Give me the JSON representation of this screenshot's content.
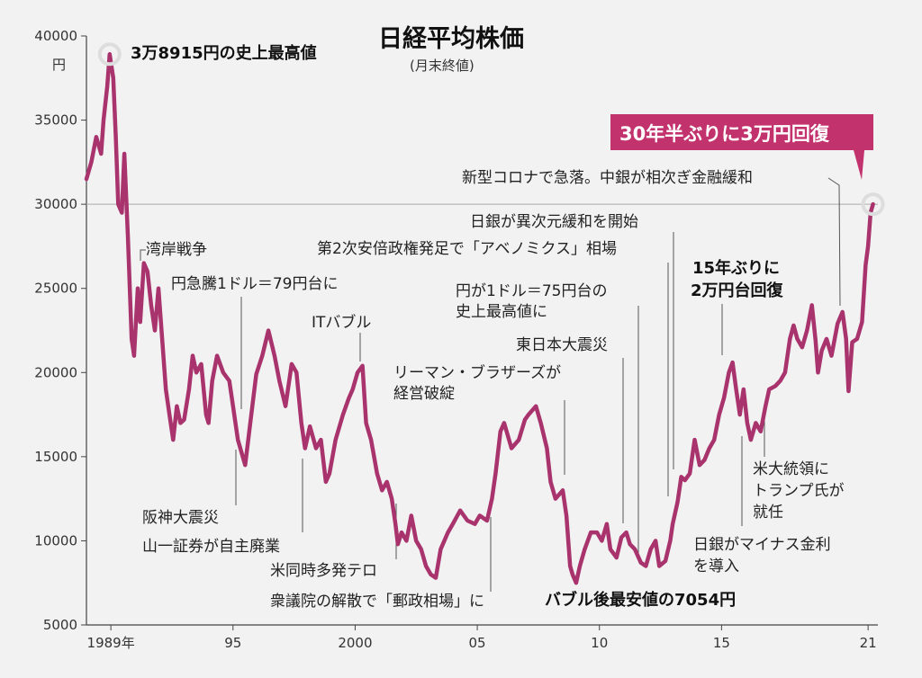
{
  "chart_data": {
    "type": "line",
    "title": "日経平均株価",
    "subtitle": "(月末終値)",
    "yunit": "円",
    "ylim": [
      5000,
      40000
    ],
    "yticks": [
      "40000",
      "35000",
      "30000",
      "25000",
      "20000",
      "15000",
      "10000",
      "5000"
    ],
    "xlim": [
      1989.0,
      2021.4
    ],
    "xticks": [
      {
        "x": 1990.0,
        "label": "1989年"
      },
      {
        "x": 1995.0,
        "label": "95"
      },
      {
        "x": 2000.0,
        "label": "2000"
      },
      {
        "x": 2005.0,
        "label": "05"
      },
      {
        "x": 2010.0,
        "label": "10"
      },
      {
        "x": 2015.0,
        "label": "15"
      },
      {
        "x": 2021.0,
        "label": "21"
      }
    ],
    "reference_line": 30000,
    "line_color": "#a8336d",
    "highlight_color": "#c2336e",
    "series": [
      {
        "points": [
          [
            1989.0,
            31500
          ],
          [
            1989.2,
            32500
          ],
          [
            1989.4,
            34000
          ],
          [
            1989.6,
            33000
          ],
          [
            1989.7,
            35000
          ],
          [
            1989.85,
            37000
          ],
          [
            1989.95,
            38915
          ],
          [
            1990.1,
            37500
          ],
          [
            1990.2,
            34000
          ],
          [
            1990.3,
            30000
          ],
          [
            1990.45,
            29500
          ],
          [
            1990.55,
            33000
          ],
          [
            1990.7,
            28000
          ],
          [
            1990.85,
            22000
          ],
          [
            1990.95,
            21000
          ],
          [
            1991.1,
            25000
          ],
          [
            1991.2,
            23000
          ],
          [
            1991.35,
            26500
          ],
          [
            1991.5,
            26000
          ],
          [
            1991.65,
            24000
          ],
          [
            1991.8,
            22500
          ],
          [
            1991.95,
            25000
          ],
          [
            1992.1,
            22000
          ],
          [
            1992.25,
            19000
          ],
          [
            1992.4,
            17500
          ],
          [
            1992.55,
            16000
          ],
          [
            1992.7,
            18000
          ],
          [
            1992.85,
            17000
          ],
          [
            1993.0,
            17200
          ],
          [
            1993.2,
            19000
          ],
          [
            1993.35,
            21000
          ],
          [
            1993.5,
            20000
          ],
          [
            1993.7,
            20500
          ],
          [
            1993.9,
            17500
          ],
          [
            1994.0,
            17000
          ],
          [
            1994.15,
            19500
          ],
          [
            1994.35,
            21000
          ],
          [
            1994.6,
            20000
          ],
          [
            1994.85,
            19500
          ],
          [
            1995.0,
            18000
          ],
          [
            1995.2,
            16000
          ],
          [
            1995.4,
            15000
          ],
          [
            1995.5,
            14500
          ],
          [
            1995.75,
            17500
          ],
          [
            1995.95,
            19900
          ],
          [
            1996.2,
            21000
          ],
          [
            1996.45,
            22500
          ],
          [
            1996.7,
            21000
          ],
          [
            1996.9,
            19500
          ],
          [
            1997.15,
            18000
          ],
          [
            1997.4,
            20500
          ],
          [
            1997.6,
            20000
          ],
          [
            1997.8,
            17000
          ],
          [
            1997.95,
            15500
          ],
          [
            1998.15,
            16800
          ],
          [
            1998.4,
            15500
          ],
          [
            1998.6,
            16000
          ],
          [
            1998.8,
            13500
          ],
          [
            1998.95,
            14000
          ],
          [
            1999.2,
            16000
          ],
          [
            1999.5,
            17500
          ],
          [
            1999.75,
            18500
          ],
          [
            1999.9,
            19000
          ],
          [
            2000.1,
            20000
          ],
          [
            2000.3,
            20400
          ],
          [
            2000.45,
            17000
          ],
          [
            2000.65,
            16000
          ],
          [
            2000.9,
            14000
          ],
          [
            2001.1,
            13000
          ],
          [
            2001.3,
            13500
          ],
          [
            2001.5,
            12500
          ],
          [
            2001.65,
            11000
          ],
          [
            2001.75,
            9800
          ],
          [
            2001.9,
            10500
          ],
          [
            2002.1,
            10000
          ],
          [
            2002.3,
            11500
          ],
          [
            2002.5,
            10000
          ],
          [
            2002.7,
            9500
          ],
          [
            2002.9,
            8500
          ],
          [
            2003.1,
            8000
          ],
          [
            2003.3,
            7800
          ],
          [
            2003.5,
            9500
          ],
          [
            2003.8,
            10500
          ],
          [
            2004.0,
            11000
          ],
          [
            2004.3,
            11800
          ],
          [
            2004.6,
            11200
          ],
          [
            2004.9,
            11000
          ],
          [
            2005.1,
            11500
          ],
          [
            2005.4,
            11200
          ],
          [
            2005.6,
            12500
          ],
          [
            2005.75,
            14000
          ],
          [
            2005.95,
            16500
          ],
          [
            2006.1,
            17000
          ],
          [
            2006.4,
            15500
          ],
          [
            2006.7,
            16000
          ],
          [
            2006.95,
            17200
          ],
          [
            2007.1,
            17500
          ],
          [
            2007.4,
            18000
          ],
          [
            2007.6,
            17000
          ],
          [
            2007.85,
            15500
          ],
          [
            2008.0,
            13500
          ],
          [
            2008.2,
            12500
          ],
          [
            2008.5,
            13000
          ],
          [
            2008.65,
            11500
          ],
          [
            2008.8,
            8500
          ],
          [
            2008.9,
            8000
          ],
          [
            2009.05,
            7500
          ],
          [
            2009.2,
            8500
          ],
          [
            2009.4,
            9500
          ],
          [
            2009.65,
            10500
          ],
          [
            2009.9,
            10500
          ],
          [
            2010.1,
            10000
          ],
          [
            2010.3,
            11000
          ],
          [
            2010.45,
            9500
          ],
          [
            2010.7,
            9000
          ],
          [
            2010.9,
            10200
          ],
          [
            2011.1,
            10500
          ],
          [
            2011.25,
            9800
          ],
          [
            2011.45,
            9500
          ],
          [
            2011.7,
            8700
          ],
          [
            2011.9,
            8500
          ],
          [
            2012.1,
            9500
          ],
          [
            2012.3,
            10000
          ],
          [
            2012.45,
            8500
          ],
          [
            2012.7,
            8800
          ],
          [
            2012.9,
            10000
          ],
          [
            2013.0,
            11000
          ],
          [
            2013.2,
            12300
          ],
          [
            2013.35,
            13800
          ],
          [
            2013.5,
            13600
          ],
          [
            2013.7,
            14000
          ],
          [
            2013.9,
            16000
          ],
          [
            2014.1,
            14500
          ],
          [
            2014.3,
            14800
          ],
          [
            2014.5,
            15500
          ],
          [
            2014.7,
            16000
          ],
          [
            2014.9,
            17500
          ],
          [
            2015.1,
            18500
          ],
          [
            2015.3,
            20000
          ],
          [
            2015.45,
            20600
          ],
          [
            2015.6,
            19000
          ],
          [
            2015.75,
            17500
          ],
          [
            2015.9,
            19000
          ],
          [
            2016.05,
            17000
          ],
          [
            2016.2,
            16000
          ],
          [
            2016.4,
            17000
          ],
          [
            2016.6,
            16500
          ],
          [
            2016.8,
            18000
          ],
          [
            2016.95,
            19000
          ],
          [
            2017.2,
            19200
          ],
          [
            2017.4,
            19500
          ],
          [
            2017.6,
            20000
          ],
          [
            2017.8,
            22000
          ],
          [
            2017.95,
            22800
          ],
          [
            2018.1,
            22000
          ],
          [
            2018.3,
            21500
          ],
          [
            2018.5,
            22500
          ],
          [
            2018.7,
            24000
          ],
          [
            2018.85,
            21900
          ],
          [
            2018.95,
            20000
          ],
          [
            2019.1,
            21300
          ],
          [
            2019.3,
            22000
          ],
          [
            2019.5,
            21000
          ],
          [
            2019.75,
            22900
          ],
          [
            2019.95,
            23600
          ],
          [
            2020.1,
            22000
          ],
          [
            2020.2,
            18900
          ],
          [
            2020.35,
            21800
          ],
          [
            2020.55,
            22000
          ],
          [
            2020.75,
            23000
          ],
          [
            2020.9,
            26400
          ],
          [
            2021.0,
            27500
          ],
          [
            2021.1,
            29500
          ],
          [
            2021.2,
            30000
          ]
        ]
      }
    ]
  },
  "annotations": {
    "peak": "3万8915円の史上最高値",
    "gulf_war": "湾岸戦争",
    "yen_79": "円急騰1ドル＝79円台に",
    "it_bubble": "ITバブル",
    "abenomics": "第2次安倍政権発足で「アベノミクス」相場",
    "yen_75_line1": "円が1ドル＝75円台の",
    "yen_75_line2": "史上最高値に",
    "lehman_line1": "リーマン・ブラザーズが",
    "lehman_line2": "経営破綻",
    "quake_2011": "東日本大震災",
    "boj_easing": "日銀が異次元緩和を開始",
    "corona": "新型コロナで急落。中銀が相次ぎ金融緩和",
    "recover_20k_line1": "15年ぶりに",
    "recover_20k_line2": "2万円台回復",
    "callout": "30年半ぶりに3万円回復",
    "hanshin": "阪神大震災",
    "yamaichi": "山一証券が自主廃業",
    "terror": "米同時多発テロ",
    "postal": "衆議院の解散で「郵政相場」に",
    "bubble_low": "バブル後最安値の7054円",
    "trump_line1": "米大統領に",
    "trump_line2": "トランプ氏が",
    "trump_line3": "就任",
    "negative_rate_line1": "日銀がマイナス金利",
    "negative_rate_line2": "を導入"
  }
}
